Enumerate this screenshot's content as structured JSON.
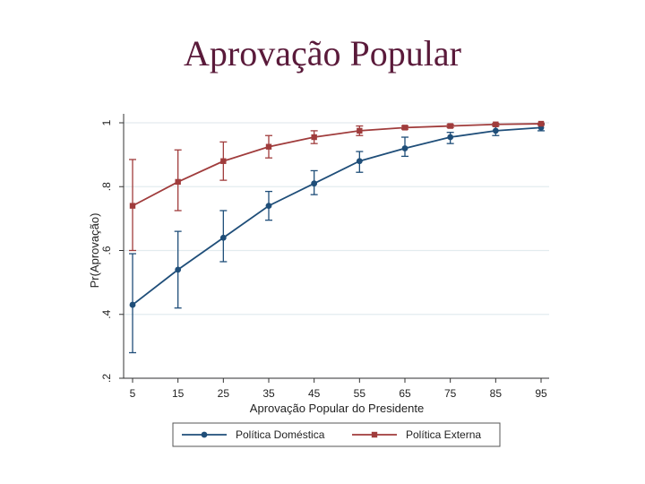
{
  "slide": {
    "title": "Aprovação Popular"
  },
  "chart_data": {
    "type": "line",
    "xlabel": "Aprovação Popular do Presidente",
    "ylabel": "Pr(Aprovação)",
    "x": [
      5,
      15,
      25,
      35,
      45,
      55,
      65,
      75,
      85,
      95
    ],
    "x_ticks": [
      "5",
      "15",
      "25",
      "35",
      "45",
      "55",
      "65",
      "75",
      "85",
      "95"
    ],
    "y_ticks": [
      0.2,
      0.4,
      0.6,
      0.8,
      1
    ],
    "y_tick_labels": [
      ".2",
      ".4",
      ".6",
      ".8",
      "1"
    ],
    "ylim": [
      0.2,
      1.0
    ],
    "grid": true,
    "legend": "bottom",
    "series": [
      {
        "name": "Política Doméstica",
        "color": "#1f4e79",
        "values": [
          0.43,
          0.54,
          0.64,
          0.74,
          0.81,
          0.88,
          0.92,
          0.955,
          0.975,
          0.985
        ],
        "lower": [
          0.28,
          0.42,
          0.565,
          0.695,
          0.775,
          0.845,
          0.895,
          0.935,
          0.96,
          0.975
        ],
        "upper": [
          0.59,
          0.66,
          0.725,
          0.785,
          0.85,
          0.91,
          0.955,
          0.97,
          0.99,
          0.995
        ]
      },
      {
        "name": "Política Externa",
        "color": "#a03c3c",
        "values": [
          0.74,
          0.815,
          0.88,
          0.925,
          0.955,
          0.975,
          0.985,
          0.99,
          0.995,
          0.997
        ],
        "lower": [
          0.6,
          0.725,
          0.82,
          0.89,
          0.935,
          0.96,
          0.98,
          0.985,
          0.99,
          0.993
        ],
        "upper": [
          0.885,
          0.915,
          0.94,
          0.96,
          0.975,
          0.99,
          0.99,
          0.995,
          0.998,
          0.999
        ]
      }
    ]
  }
}
